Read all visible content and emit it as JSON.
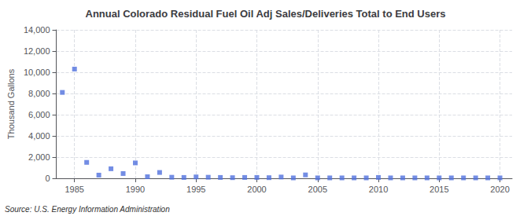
{
  "chart_data": {
    "type": "scatter",
    "title": "Annual Colorado Residual Fuel Oil Adj Sales/Deliveries Total to End Users",
    "ylabel": "Thousand Gallons",
    "annotation": "Source: U.S. Energy Information Administration",
    "marker": "square",
    "grid": true,
    "x": [
      1984,
      1985,
      1986,
      1987,
      1988,
      1989,
      1990,
      1991,
      1992,
      1993,
      1994,
      1995,
      1996,
      1997,
      1998,
      1999,
      2000,
      2001,
      2002,
      2003,
      2004,
      2005,
      2006,
      2007,
      2008,
      2009,
      2010,
      2011,
      2012,
      2013,
      2014,
      2015,
      2016,
      2017,
      2018,
      2019,
      2020
    ],
    "values": [
      8100,
      10300,
      1500,
      300,
      900,
      450,
      1450,
      150,
      550,
      100,
      80,
      130,
      100,
      80,
      60,
      80,
      80,
      60,
      120,
      40,
      320,
      40,
      40,
      40,
      40,
      40,
      80,
      40,
      40,
      40,
      40,
      40,
      40,
      40,
      40,
      40,
      40
    ],
    "xlim": [
      1983.5,
      2021
    ],
    "xticks": [
      1985,
      1990,
      1995,
      2000,
      2005,
      2010,
      2015,
      2020
    ],
    "ylim": [
      0,
      14000
    ],
    "yticks": [
      0,
      {
        "value": 2000,
        "label": "2,000"
      },
      {
        "value": 4000,
        "label": "4,000"
      },
      {
        "value": 6000,
        "label": "6,000"
      },
      {
        "value": 8000,
        "label": "8,000"
      },
      {
        "value": 10000,
        "label": "10,000"
      },
      {
        "value": 12000,
        "label": "12,000"
      },
      {
        "value": 14000,
        "label": "14,000"
      }
    ]
  }
}
